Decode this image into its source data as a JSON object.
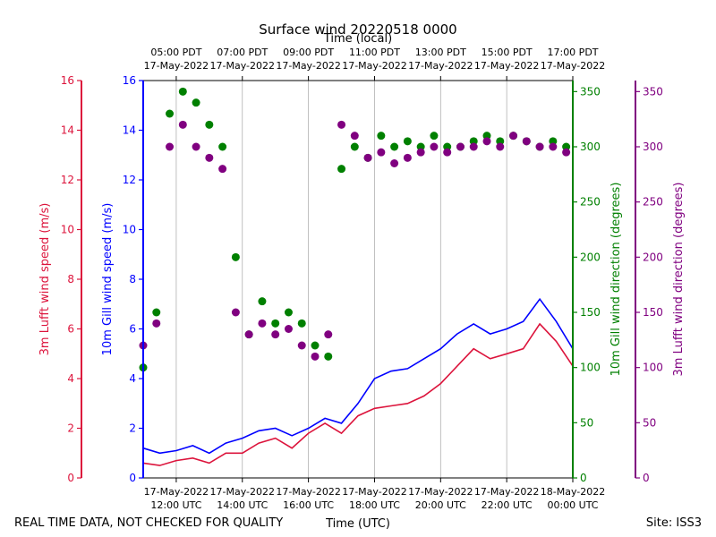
{
  "chart_data": {
    "type": "scatter",
    "title": "Surface wind 20220518 0000",
    "top_axis_label": "Time (local)",
    "bottom_axis_label": "Time (UTC)",
    "footer_left": "REAL TIME DATA, NOT CHECKED FOR QUALITY",
    "footer_right": "Site: ISS3",
    "x_hours_range": [
      11.0,
      24.0
    ],
    "grid": "vertical",
    "bottom_ticks": [
      {
        "hour": 12,
        "date": "17-May-2022",
        "time": "12:00 UTC"
      },
      {
        "hour": 14,
        "date": "17-May-2022",
        "time": "14:00 UTC"
      },
      {
        "hour": 16,
        "date": "17-May-2022",
        "time": "16:00 UTC"
      },
      {
        "hour": 18,
        "date": "17-May-2022",
        "time": "18:00 UTC"
      },
      {
        "hour": 20,
        "date": "17-May-2022",
        "time": "20:00 UTC"
      },
      {
        "hour": 22,
        "date": "17-May-2022",
        "time": "22:00 UTC"
      },
      {
        "hour": 24,
        "date": "18-May-2022",
        "time": "00:00 UTC"
      }
    ],
    "top_ticks": [
      {
        "hour": 12,
        "time": "05:00 PDT",
        "date": "17-May-2022"
      },
      {
        "hour": 14,
        "time": "07:00 PDT",
        "date": "17-May-2022"
      },
      {
        "hour": 16,
        "time": "09:00 PDT",
        "date": "17-May-2022"
      },
      {
        "hour": 18,
        "time": "11:00 PDT",
        "date": "17-May-2022"
      },
      {
        "hour": 20,
        "time": "13:00 PDT",
        "date": "17-May-2022"
      },
      {
        "hour": 22,
        "time": "15:00 PDT",
        "date": "17-May-2022"
      },
      {
        "hour": 24,
        "time": "17:00 PDT",
        "date": "17-May-2022"
      }
    ],
    "axes": {
      "lufft_speed": {
        "label": "3m Lufft wind speed (m/s)",
        "color": "#dc143c",
        "range": [
          0,
          16
        ],
        "ticks": [
          0,
          2,
          4,
          6,
          8,
          10,
          12,
          14,
          16
        ]
      },
      "gill_speed": {
        "label": "10m Gill wind speed (m/s)",
        "color": "#0000ff",
        "range": [
          0,
          16
        ],
        "ticks": [
          0,
          2,
          4,
          6,
          8,
          10,
          12,
          14,
          16
        ]
      },
      "gill_dir": {
        "label": "10m Gill wind direction (degrees)",
        "color": "#008000",
        "range": [
          0,
          360
        ],
        "ticks": [
          0,
          50,
          100,
          150,
          200,
          250,
          300,
          350
        ]
      },
      "lufft_dir": {
        "label": "3m Lufft wind direction (degrees)",
        "color": "#800080",
        "range": [
          0,
          360
        ],
        "ticks": [
          0,
          50,
          100,
          150,
          200,
          250,
          300,
          350
        ]
      }
    },
    "series": [
      {
        "name": "10m Gill wind speed",
        "axis": "gill_speed",
        "kind": "line",
        "color": "#0000ff",
        "x": [
          11.0,
          11.5,
          12.0,
          12.5,
          13.0,
          13.5,
          14.0,
          14.5,
          15.0,
          15.5,
          16.0,
          16.5,
          17.0,
          17.5,
          18.0,
          18.5,
          19.0,
          19.5,
          20.0,
          20.5,
          21.0,
          21.5,
          22.0,
          22.5,
          23.0,
          23.5,
          24.0
        ],
        "y": [
          1.2,
          1.0,
          1.1,
          1.3,
          1.0,
          1.4,
          1.6,
          1.9,
          2.0,
          1.7,
          2.0,
          2.4,
          2.2,
          3.0,
          4.0,
          4.3,
          4.4,
          4.8,
          5.2,
          5.8,
          6.2,
          5.8,
          6.0,
          6.3,
          7.2,
          6.3,
          5.2
        ]
      },
      {
        "name": "3m Lufft wind speed",
        "axis": "lufft_speed",
        "kind": "line",
        "color": "#dc143c",
        "x": [
          11.0,
          11.5,
          12.0,
          12.5,
          13.0,
          13.5,
          14.0,
          14.5,
          15.0,
          15.5,
          16.0,
          16.5,
          17.0,
          17.5,
          18.0,
          18.5,
          19.0,
          19.5,
          20.0,
          20.5,
          21.0,
          21.5,
          22.0,
          22.5,
          23.0,
          23.5,
          24.0
        ],
        "y": [
          0.6,
          0.5,
          0.7,
          0.8,
          0.6,
          1.0,
          1.0,
          1.4,
          1.6,
          1.2,
          1.8,
          2.2,
          1.8,
          2.5,
          2.8,
          2.9,
          3.0,
          3.3,
          3.8,
          4.5,
          5.2,
          4.8,
          5.0,
          5.2,
          6.2,
          5.5,
          4.5
        ]
      },
      {
        "name": "10m Gill wind direction",
        "axis": "gill_dir",
        "kind": "scatter",
        "color": "#008000",
        "x": [
          11.0,
          11.4,
          11.8,
          12.2,
          12.6,
          13.0,
          13.4,
          13.8,
          14.2,
          14.6,
          15.0,
          15.4,
          15.8,
          16.2,
          16.6,
          17.0,
          17.4,
          17.8,
          18.2,
          18.6,
          19.0,
          19.4,
          19.8,
          20.2,
          20.6,
          21.0,
          21.4,
          21.8,
          22.2,
          22.6,
          23.0,
          23.4,
          23.8
        ],
        "y": [
          100,
          150,
          330,
          350,
          340,
          320,
          300,
          200,
          130,
          160,
          140,
          150,
          140,
          120,
          110,
          280,
          300,
          290,
          310,
          300,
          305,
          300,
          310,
          300,
          300,
          305,
          310,
          305,
          310,
          305,
          300,
          305,
          300
        ]
      },
      {
        "name": "3m Lufft wind direction",
        "axis": "lufft_dir",
        "kind": "scatter",
        "color": "#800080",
        "x": [
          11.0,
          11.4,
          11.8,
          12.2,
          12.6,
          13.0,
          13.4,
          13.8,
          14.2,
          14.6,
          15.0,
          15.4,
          15.8,
          16.2,
          16.6,
          17.0,
          17.4,
          17.8,
          18.2,
          18.6,
          19.0,
          19.4,
          19.8,
          20.2,
          20.6,
          21.0,
          21.4,
          21.8,
          22.2,
          22.6,
          23.0,
          23.4,
          23.8
        ],
        "y": [
          120,
          140,
          300,
          320,
          300,
          290,
          280,
          150,
          130,
          140,
          130,
          135,
          120,
          110,
          130,
          320,
          310,
          290,
          295,
          285,
          290,
          295,
          300,
          295,
          300,
          300,
          305,
          300,
          310,
          305,
          300,
          300,
          295
        ]
      }
    ]
  }
}
